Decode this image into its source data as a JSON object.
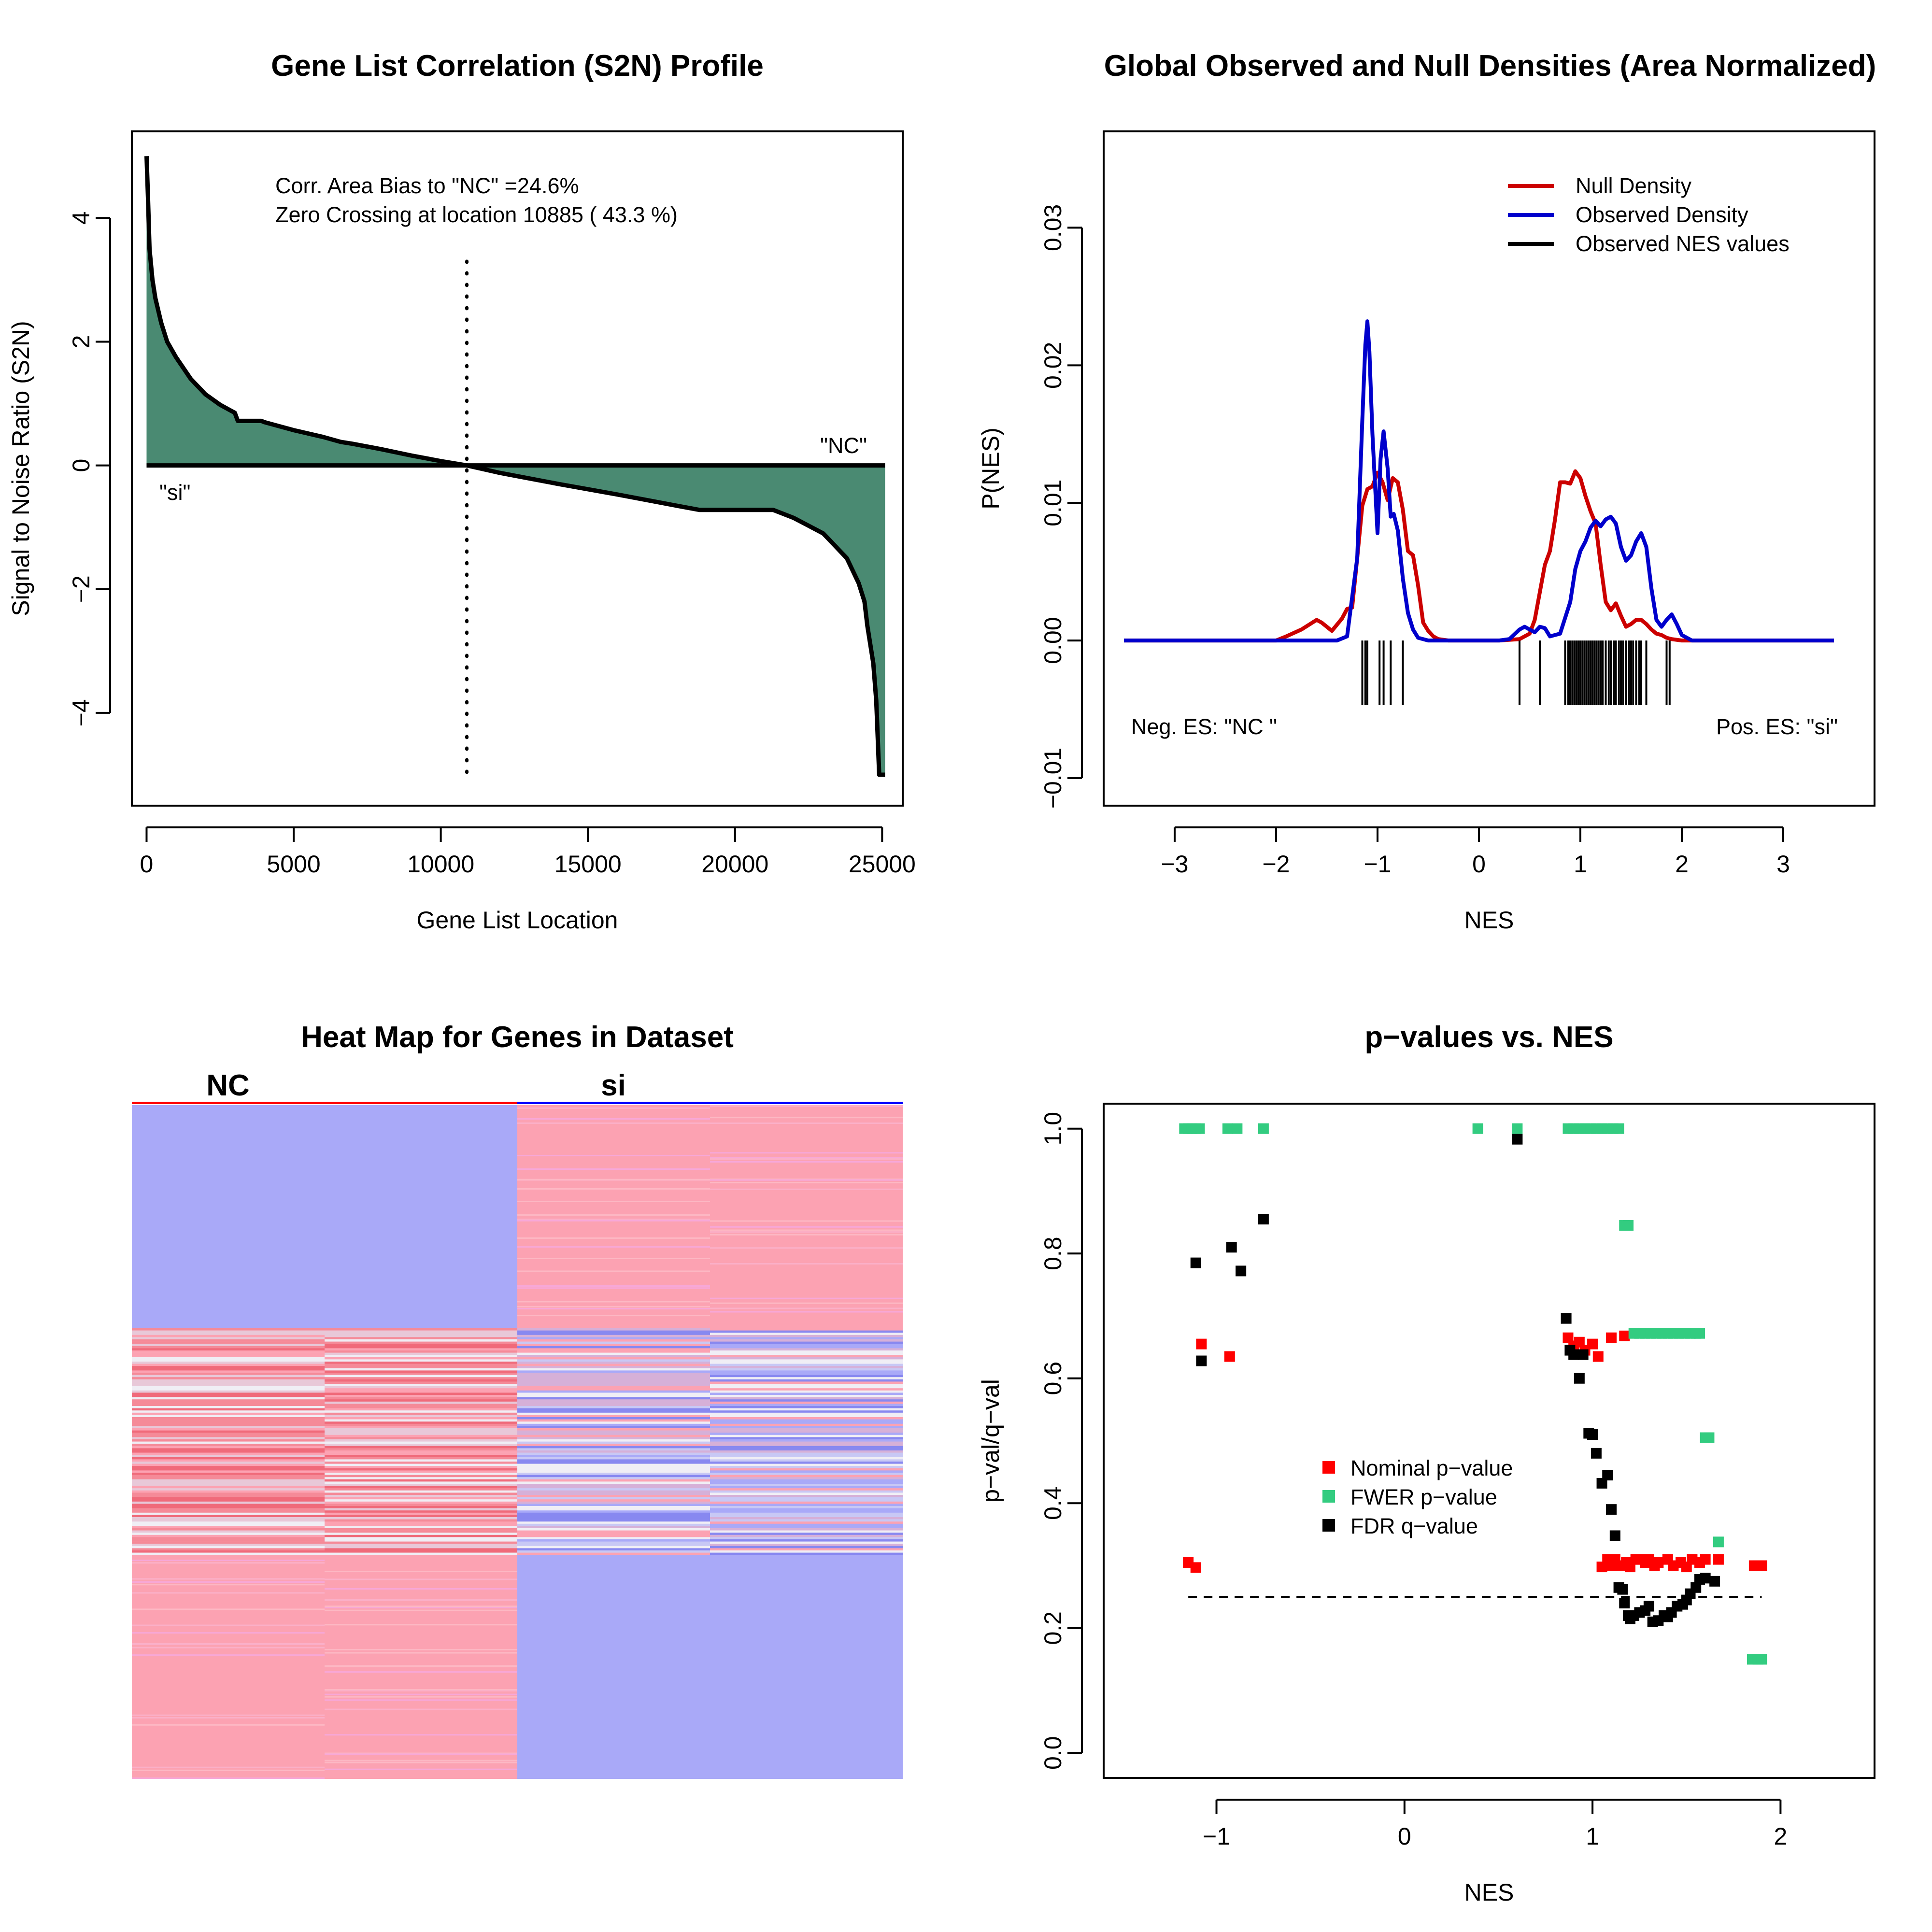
{
  "colors": {
    "s2n_fill": "#4a8a72",
    "null_density": "#cc0000",
    "observed_density": "#0000cc",
    "nominal": "#ff0000",
    "fwer": "#33cc80",
    "fdr": "#000000",
    "heat_blue": "#a9a9f8",
    "heat_pink": "#fca2b2",
    "heat_white": "#f0eef5",
    "heat_red": "#f06a7a",
    "nc_line": "#ff0000",
    "si_line": "#0000ff"
  },
  "chart_data": [
    {
      "id": "s2n",
      "type": "area",
      "title": "Gene List Correlation (S2N) Profile",
      "xlabel": "Gene List Location",
      "ylabel": "Signal to Noise Ratio (S2N)",
      "xlim": [
        -500,
        25700
      ],
      "ylim": [
        -5.5,
        5.4
      ],
      "xticks": [
        0,
        5000,
        10000,
        15000,
        20000,
        25000
      ],
      "xticklabels": [
        "0",
        "5000",
        "10000",
        "15000",
        "20000",
        "25000"
      ],
      "yticks": [
        -4,
        -2,
        0,
        2,
        4
      ],
      "yticklabels": [
        "−4",
        "−2",
        "0",
        "2",
        "4"
      ],
      "annotations": [
        "Corr. Area Bias to \"NC\" =24.6%",
        "Zero Crossing at location  10885  ( 43.3  %)"
      ],
      "zero_crossing": 10885,
      "label_left": "\"si\"",
      "label_right": "\"NC\"",
      "x": [
        0,
        50,
        100,
        200,
        300,
        500,
        700,
        1000,
        1500,
        2000,
        2500,
        3000,
        3100,
        3900,
        4000,
        5000,
        6000,
        6600,
        7000,
        8000,
        9000,
        10000,
        10885,
        12000,
        14000,
        16000,
        18000,
        18800,
        21300,
        22000,
        23000,
        23800,
        24200,
        24400,
        24500,
        24700,
        24800,
        24900,
        25000,
        25100
      ],
      "values": [
        5.0,
        4.3,
        3.5,
        3.0,
        2.7,
        2.3,
        2.0,
        1.75,
        1.4,
        1.15,
        0.98,
        0.85,
        0.72,
        0.72,
        0.7,
        0.57,
        0.46,
        0.38,
        0.35,
        0.26,
        0.16,
        0.07,
        0.0,
        -0.12,
        -0.3,
        -0.47,
        -0.65,
        -0.72,
        -0.72,
        -0.85,
        -1.1,
        -1.5,
        -1.9,
        -2.2,
        -2.6,
        -3.2,
        -3.8,
        -5.0,
        -5.0,
        -5.0
      ]
    },
    {
      "id": "densities",
      "type": "line",
      "title": "Global Observed and Null Densities (Area Normalized)",
      "xlabel": "NES",
      "ylabel": "P(NES)",
      "xlim": [
        -3.7,
        3.9
      ],
      "ylim": [
        -0.012,
        0.037
      ],
      "xticks": [
        -3,
        -2,
        -1,
        0,
        1,
        2,
        3
      ],
      "xticklabels": [
        "−3",
        "−2",
        "−1",
        "0",
        "1",
        "2",
        "3"
      ],
      "yticks": [
        -0.01,
        0.0,
        0.01,
        0.02,
        0.03
      ],
      "yticklabels": [
        "−0.01",
        "0.00",
        "0.01",
        "0.02",
        "0.03"
      ],
      "legend": [
        "Null Density",
        "Observed Density",
        "Observed NES values"
      ],
      "label_left": "Neg. ES: \"NC \"",
      "label_right": "Pos. ES: \"si\"",
      "series": [
        {
          "name": "Null Density",
          "x": [
            -3.5,
            -2.0,
            -1.9,
            -1.75,
            -1.6,
            -1.55,
            -1.45,
            -1.35,
            -1.3,
            -1.25,
            -1.2,
            -1.15,
            -1.1,
            -1.05,
            -1.0,
            -0.95,
            -0.9,
            -0.85,
            -0.8,
            -0.75,
            -0.7,
            -0.65,
            -0.6,
            -0.55,
            -0.5,
            -0.45,
            -0.4,
            -0.3,
            0.2,
            0.4,
            0.5,
            0.55,
            0.6,
            0.65,
            0.7,
            0.75,
            0.8,
            0.85,
            0.9,
            0.95,
            1.0,
            1.05,
            1.1,
            1.15,
            1.2,
            1.25,
            1.3,
            1.35,
            1.4,
            1.45,
            1.5,
            1.55,
            1.6,
            1.65,
            1.7,
            1.75,
            1.8,
            1.85,
            1.9,
            2.0,
            3.5
          ],
          "y": [
            0,
            0,
            0.0003,
            0.0008,
            0.0015,
            0.0013,
            0.0007,
            0.0016,
            0.0023,
            0.0024,
            0.006,
            0.0098,
            0.011,
            0.0112,
            0.0122,
            0.0115,
            0.0102,
            0.0118,
            0.0115,
            0.0095,
            0.0065,
            0.0062,
            0.004,
            0.0013,
            0.0007,
            0.0003,
            0.0001,
            0,
            0,
            0.0001,
            0.0005,
            0.0015,
            0.0035,
            0.0055,
            0.0065,
            0.0088,
            0.0115,
            0.0115,
            0.0114,
            0.0123,
            0.0118,
            0.0105,
            0.0094,
            0.0085,
            0.0055,
            0.0028,
            0.0022,
            0.0027,
            0.0018,
            0.001,
            0.0012,
            0.0015,
            0.0015,
            0.0012,
            0.0008,
            0.0005,
            0.0004,
            0.0002,
            0.0001,
            0,
            0
          ]
        },
        {
          "name": "Observed Density",
          "x": [
            -3.5,
            -1.4,
            -1.3,
            -1.2,
            -1.15,
            -1.12,
            -1.1,
            -1.08,
            -1.05,
            -1.0,
            -0.97,
            -0.94,
            -0.9,
            -0.87,
            -0.84,
            -0.8,
            -0.75,
            -0.7,
            -0.65,
            -0.6,
            -0.5,
            0.2,
            0.3,
            0.4,
            0.45,
            0.5,
            0.55,
            0.6,
            0.65,
            0.7,
            0.8,
            0.9,
            0.95,
            1.0,
            1.05,
            1.1,
            1.15,
            1.2,
            1.25,
            1.3,
            1.35,
            1.4,
            1.45,
            1.5,
            1.55,
            1.6,
            1.65,
            1.7,
            1.75,
            1.8,
            1.85,
            1.9,
            1.95,
            2.0,
            2.1,
            3.5
          ],
          "y": [
            0,
            0,
            0.0003,
            0.006,
            0.016,
            0.0215,
            0.0232,
            0.021,
            0.015,
            0.0078,
            0.0132,
            0.0152,
            0.0125,
            0.009,
            0.0092,
            0.008,
            0.0045,
            0.002,
            0.0008,
            0.0002,
            0,
            0,
            0.0001,
            0.0008,
            0.001,
            0.0008,
            0.0006,
            0.001,
            0.0009,
            0.0003,
            0.0005,
            0.0028,
            0.0052,
            0.0065,
            0.0072,
            0.0082,
            0.0087,
            0.0083,
            0.0088,
            0.009,
            0.0085,
            0.0068,
            0.0058,
            0.0062,
            0.0072,
            0.0078,
            0.0068,
            0.0038,
            0.0015,
            0.001,
            0.0015,
            0.0019,
            0.0012,
            0.0004,
            0,
            0
          ]
        }
      ],
      "nes_ticks": [
        -1.15,
        -1.12,
        -1.1,
        -0.98,
        -0.94,
        -0.87,
        -0.75,
        0.4,
        0.6,
        0.85,
        0.88,
        0.9,
        0.92,
        0.94,
        0.96,
        0.98,
        1.0,
        1.02,
        1.04,
        1.06,
        1.08,
        1.1,
        1.12,
        1.14,
        1.16,
        1.18,
        1.2,
        1.22,
        1.25,
        1.28,
        1.3,
        1.33,
        1.35,
        1.38,
        1.4,
        1.42,
        1.45,
        1.48,
        1.5,
        1.52,
        1.55,
        1.58,
        1.6,
        1.65,
        1.85,
        1.88
      ]
    },
    {
      "id": "heatmap",
      "type": "heatmap",
      "title": "Heat Map for Genes in Dataset",
      "columns": [
        "NC",
        "si"
      ],
      "n_samples": 4
    },
    {
      "id": "pvalues",
      "type": "scatter",
      "title": "p−values vs. NES",
      "xlabel": "NES",
      "ylabel": "p−val/q−val",
      "xlim": [
        -1.6,
        2.5
      ],
      "ylim": [
        -0.04,
        1.04
      ],
      "xticks": [
        -1,
        0,
        1,
        2
      ],
      "xticklabels": [
        "−1",
        "0",
        "1",
        "2"
      ],
      "yticks": [
        0.0,
        0.2,
        0.4,
        0.6,
        0.8,
        1.0
      ],
      "yticklabels": [
        "0.0",
        "0.2",
        "0.4",
        "0.6",
        "0.8",
        "1.0"
      ],
      "threshold": 0.25,
      "threshold_x": [
        -1.15,
        1.9
      ],
      "legend": [
        "Nominal p−value",
        "FWER p−value",
        "FDR q−value"
      ],
      "series": [
        {
          "name": "Nominal p−value",
          "x": [
            -1.15,
            -1.11,
            -1.08,
            -0.93,
            0.87,
            0.9,
            0.93,
            0.96,
            1.0,
            1.03,
            1.1,
            1.17,
            1.05,
            1.08,
            1.1,
            1.12,
            1.15,
            1.18,
            1.2,
            1.23,
            1.25,
            1.28,
            1.3,
            1.33,
            1.35,
            1.4,
            1.43,
            1.47,
            1.5,
            1.53,
            1.57,
            1.6,
            1.67,
            1.86,
            1.88,
            1.9
          ],
          "y": [
            0.305,
            0.297,
            0.655,
            0.635,
            0.665,
            0.652,
            0.658,
            0.645,
            0.655,
            0.635,
            0.665,
            0.668,
            0.298,
            0.31,
            0.3,
            0.31,
            0.3,
            0.305,
            0.298,
            0.31,
            0.31,
            0.305,
            0.31,
            0.3,
            0.305,
            0.31,
            0.3,
            0.305,
            0.298,
            0.31,
            0.305,
            0.31,
            0.31,
            0.3,
            0.3,
            0.3
          ]
        },
        {
          "name": "FWER p−value",
          "x": [
            -1.17,
            -1.15,
            -1.13,
            -1.11,
            -1.09,
            -0.94,
            -0.89,
            -0.75,
            0.39,
            0.6,
            0.87,
            0.9,
            0.93,
            0.96,
            0.99,
            1.02,
            1.05,
            1.08,
            1.11,
            1.14,
            1.17,
            1.19,
            1.22,
            1.25,
            1.28,
            1.31,
            1.34,
            1.37,
            1.4,
            1.43,
            1.46,
            1.49,
            1.52,
            1.55,
            1.57,
            1.6,
            1.62,
            1.67,
            1.85,
            1.88,
            1.9
          ],
          "y": [
            1.0,
            1.0,
            1.0,
            1.0,
            1.0,
            1.0,
            1.0,
            1.0,
            1.0,
            1.0,
            1.0,
            1.0,
            1.0,
            1.0,
            1.0,
            1.0,
            1.0,
            1.0,
            1.0,
            1.0,
            0.845,
            0.845,
            0.672,
            0.672,
            0.672,
            0.672,
            0.672,
            0.672,
            0.672,
            0.672,
            0.672,
            0.672,
            0.672,
            0.672,
            0.672,
            0.505,
            0.505,
            0.338,
            0.15,
            0.15,
            0.15
          ]
        },
        {
          "name": "FDR q−value",
          "x": [
            -1.11,
            -1.08,
            -0.92,
            -0.87,
            -0.75,
            0.6,
            0.86,
            0.88,
            0.9,
            0.93,
            0.95,
            0.98,
            1.0,
            1.02,
            1.05,
            1.08,
            1.1,
            1.12,
            1.14,
            1.16,
            1.17,
            1.19,
            1.2,
            1.22,
            1.25,
            1.28,
            1.3,
            1.32,
            1.35,
            1.38,
            1.4,
            1.42,
            1.45,
            1.48,
            1.5,
            1.52,
            1.55,
            1.57,
            1.6,
            1.65
          ],
          "y": [
            0.785,
            0.628,
            0.81,
            0.772,
            0.855,
            0.983,
            0.696,
            0.645,
            0.638,
            0.6,
            0.638,
            0.512,
            0.51,
            0.48,
            0.432,
            0.445,
            0.39,
            0.348,
            0.265,
            0.262,
            0.24,
            0.22,
            0.215,
            0.22,
            0.225,
            0.228,
            0.235,
            0.21,
            0.212,
            0.22,
            0.218,
            0.225,
            0.235,
            0.238,
            0.245,
            0.255,
            0.265,
            0.278,
            0.28,
            0.275
          ]
        }
      ]
    }
  ]
}
